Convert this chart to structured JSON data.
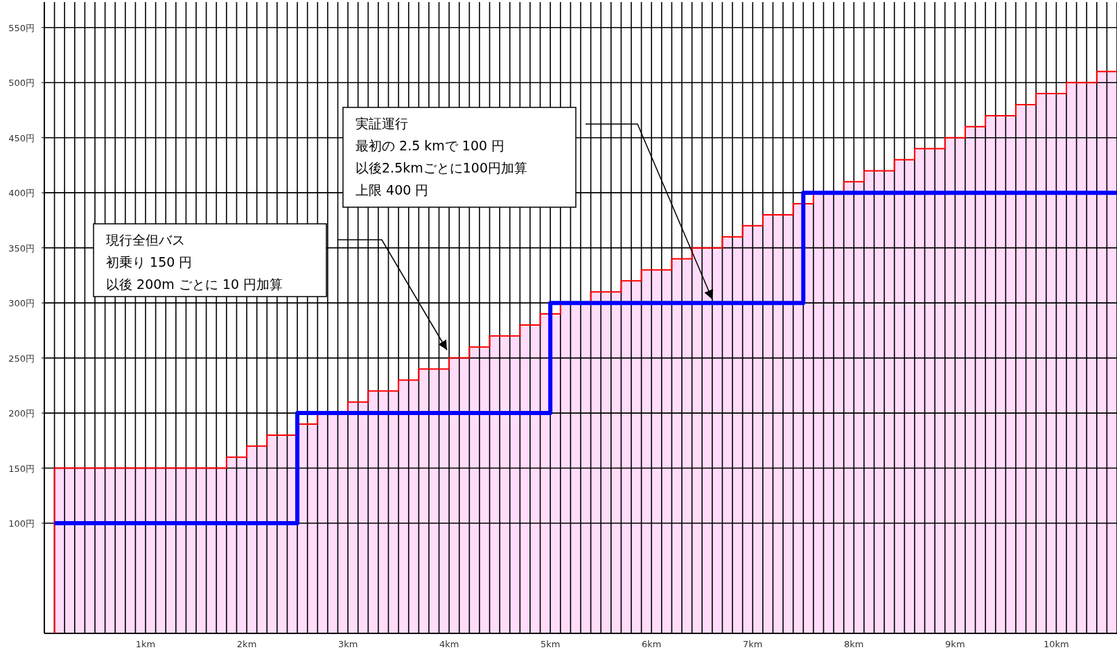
{
  "chart_data": {
    "type": "step",
    "xlim": [
      0,
      10.6
    ],
    "ylim": [
      0,
      575
    ],
    "xticks": [
      {
        "value": 0,
        "label": null
      },
      {
        "value": 0.1,
        "label": null
      },
      {
        "value": 0.2,
        "label": null
      },
      {
        "value": 0.3,
        "label": null
      },
      {
        "value": 0.4,
        "label": null
      },
      {
        "value": 0.5,
        "label": null
      },
      {
        "value": 0.6,
        "label": null
      },
      {
        "value": 0.7,
        "label": null
      },
      {
        "value": 0.8,
        "label": null
      },
      {
        "value": 0.9,
        "label": null
      },
      {
        "value": 1,
        "label": "1km"
      },
      {
        "value": 1.1,
        "label": null
      },
      {
        "value": 1.2,
        "label": null
      },
      {
        "value": 1.3,
        "label": null
      },
      {
        "value": 1.4,
        "label": null
      },
      {
        "value": 1.5,
        "label": null
      },
      {
        "value": 1.6,
        "label": null
      },
      {
        "value": 1.7,
        "label": null
      },
      {
        "value": 1.8,
        "label": null
      },
      {
        "value": 1.9,
        "label": null
      },
      {
        "value": 2,
        "label": "2km"
      },
      {
        "value": 2.1,
        "label": null
      },
      {
        "value": 2.2,
        "label": null
      },
      {
        "value": 2.3,
        "label": null
      },
      {
        "value": 2.4,
        "label": null
      },
      {
        "value": 2.5,
        "label": null
      },
      {
        "value": 2.6,
        "label": null
      },
      {
        "value": 2.7,
        "label": null
      },
      {
        "value": 2.8,
        "label": null
      },
      {
        "value": 2.9,
        "label": null
      },
      {
        "value": 3,
        "label": "3km"
      },
      {
        "value": 3.1,
        "label": null
      },
      {
        "value": 3.2,
        "label": null
      },
      {
        "value": 3.3,
        "label": null
      },
      {
        "value": 3.4,
        "label": null
      },
      {
        "value": 3.5,
        "label": null
      },
      {
        "value": 3.6,
        "label": null
      },
      {
        "value": 3.7,
        "label": null
      },
      {
        "value": 3.8,
        "label": null
      },
      {
        "value": 3.9,
        "label": null
      },
      {
        "value": 4,
        "label": "4km"
      },
      {
        "value": 4.1,
        "label": null
      },
      {
        "value": 4.2,
        "label": null
      },
      {
        "value": 4.3,
        "label": null
      },
      {
        "value": 4.4,
        "label": null
      },
      {
        "value": 4.5,
        "label": null
      },
      {
        "value": 4.6,
        "label": null
      },
      {
        "value": 4.7,
        "label": null
      },
      {
        "value": 4.8,
        "label": null
      },
      {
        "value": 4.9,
        "label": null
      },
      {
        "value": 5,
        "label": "5km"
      },
      {
        "value": 5.1,
        "label": null
      },
      {
        "value": 5.2,
        "label": null
      },
      {
        "value": 5.3,
        "label": null
      },
      {
        "value": 5.4,
        "label": null
      },
      {
        "value": 5.5,
        "label": null
      },
      {
        "value": 5.6,
        "label": null
      },
      {
        "value": 5.7,
        "label": null
      },
      {
        "value": 5.8,
        "label": null
      },
      {
        "value": 5.9,
        "label": null
      },
      {
        "value": 6,
        "label": "6km"
      },
      {
        "value": 6.1,
        "label": null
      },
      {
        "value": 6.2,
        "label": null
      },
      {
        "value": 6.3,
        "label": null
      },
      {
        "value": 6.4,
        "label": null
      },
      {
        "value": 6.5,
        "label": null
      },
      {
        "value": 6.6,
        "label": null
      },
      {
        "value": 6.7,
        "label": null
      },
      {
        "value": 6.8,
        "label": null
      },
      {
        "value": 6.9,
        "label": null
      },
      {
        "value": 7,
        "label": "7km"
      },
      {
        "value": 7.1,
        "label": null
      },
      {
        "value": 7.2,
        "label": null
      },
      {
        "value": 7.3,
        "label": null
      },
      {
        "value": 7.4,
        "label": null
      },
      {
        "value": 7.5,
        "label": null
      },
      {
        "value": 7.6,
        "label": null
      },
      {
        "value": 7.7,
        "label": null
      },
      {
        "value": 7.8,
        "label": null
      },
      {
        "value": 7.9,
        "label": null
      },
      {
        "value": 8,
        "label": "8km"
      },
      {
        "value": 8.1,
        "label": null
      },
      {
        "value": 8.2,
        "label": null
      },
      {
        "value": 8.3,
        "label": null
      },
      {
        "value": 8.4,
        "label": null
      },
      {
        "value": 8.5,
        "label": null
      },
      {
        "value": 8.6,
        "label": null
      },
      {
        "value": 8.7,
        "label": null
      },
      {
        "value": 8.8,
        "label": null
      },
      {
        "value": 8.9,
        "label": null
      },
      {
        "value": 9,
        "label": "9km"
      },
      {
        "value": 9.1,
        "label": null
      },
      {
        "value": 9.2,
        "label": null
      },
      {
        "value": 9.3,
        "label": null
      },
      {
        "value": 9.4,
        "label": null
      },
      {
        "value": 9.5,
        "label": null
      },
      {
        "value": 9.6,
        "label": null
      },
      {
        "value": 9.7,
        "label": null
      },
      {
        "value": 9.8,
        "label": null
      },
      {
        "value": 9.9,
        "label": null
      },
      {
        "value": 10,
        "label": "10km"
      },
      {
        "value": 10.1,
        "label": null
      },
      {
        "value": 10.2,
        "label": null
      },
      {
        "value": 10.3,
        "label": null
      },
      {
        "value": 10.4,
        "label": null
      },
      {
        "value": 10.5,
        "label": null
      },
      {
        "value": 10.6,
        "label": null
      }
    ],
    "yticks": [
      {
        "value": 100,
        "label": "100円"
      },
      {
        "value": 150,
        "label": "150円"
      },
      {
        "value": 200,
        "label": "200円"
      },
      {
        "value": 250,
        "label": "250円"
      },
      {
        "value": 300,
        "label": "300円"
      },
      {
        "value": 350,
        "label": "350円"
      },
      {
        "value": 400,
        "label": "400円"
      },
      {
        "value": 450,
        "label": "450円"
      },
      {
        "value": 500,
        "label": "500円"
      },
      {
        "value": 550,
        "label": "550円"
      }
    ],
    "grid": true,
    "series": [
      {
        "color": "#ff0000",
        "x": [
          0.1,
          1.8,
          2.0,
          2.2,
          2.5,
          2.7,
          3.0,
          3.2,
          3.5,
          3.7,
          4.0,
          4.2,
          4.4,
          4.7,
          4.9,
          5.1,
          5.4,
          5.7,
          5.9,
          6.2,
          6.4,
          6.7,
          6.9,
          7.1,
          7.4,
          7.6,
          7.9,
          8.1,
          8.4,
          8.6,
          8.9,
          9.1,
          9.3,
          9.6,
          9.8,
          10.1,
          10.4,
          10.6
        ],
        "values": [
          150,
          160,
          170,
          180,
          190,
          200,
          210,
          220,
          230,
          240,
          250,
          260,
          270,
          280,
          290,
          300,
          310,
          320,
          330,
          340,
          350,
          360,
          370,
          380,
          390,
          400,
          410,
          420,
          430,
          440,
          450,
          460,
          470,
          480,
          490,
          500,
          510,
          510
        ]
      },
      {
        "type": "area",
        "color": "#ffdcfa",
        "x": [
          0.1,
          1.8,
          2.0,
          2.2,
          2.5,
          2.7,
          3.0,
          3.2,
          3.5,
          3.7,
          4.0,
          4.2,
          4.4,
          4.7,
          4.9,
          5.1,
          5.4,
          5.7,
          5.9,
          6.2,
          6.4,
          6.7,
          6.9,
          7.1,
          7.4,
          7.6,
          7.9,
          8.1,
          8.4,
          8.6,
          8.9,
          9.1,
          9.3,
          9.6,
          9.8,
          10.1,
          10.4,
          10.6
        ],
        "values": [
          150,
          160,
          170,
          180,
          190,
          200,
          210,
          220,
          230,
          240,
          250,
          260,
          270,
          280,
          290,
          300,
          310,
          320,
          330,
          340,
          350,
          360,
          370,
          380,
          390,
          400,
          410,
          420,
          430,
          440,
          450,
          460,
          470,
          480,
          490,
          500,
          510,
          510
        ]
      },
      {
        "color": "#0000ff",
        "x": [
          0.1,
          2.5,
          5.0,
          7.5,
          10.6
        ],
        "values": [
          100,
          200,
          300,
          400,
          400
        ]
      }
    ],
    "annotations": [
      "現行全但バス",
      "初乗り 150 円",
      "以後 200m ごとに 10 円加算",
      "実証運行",
      "最初の 2.5 kmで 100 円",
      "以後2.5kmごとに100円加算",
      "上限 400 円"
    ]
  }
}
